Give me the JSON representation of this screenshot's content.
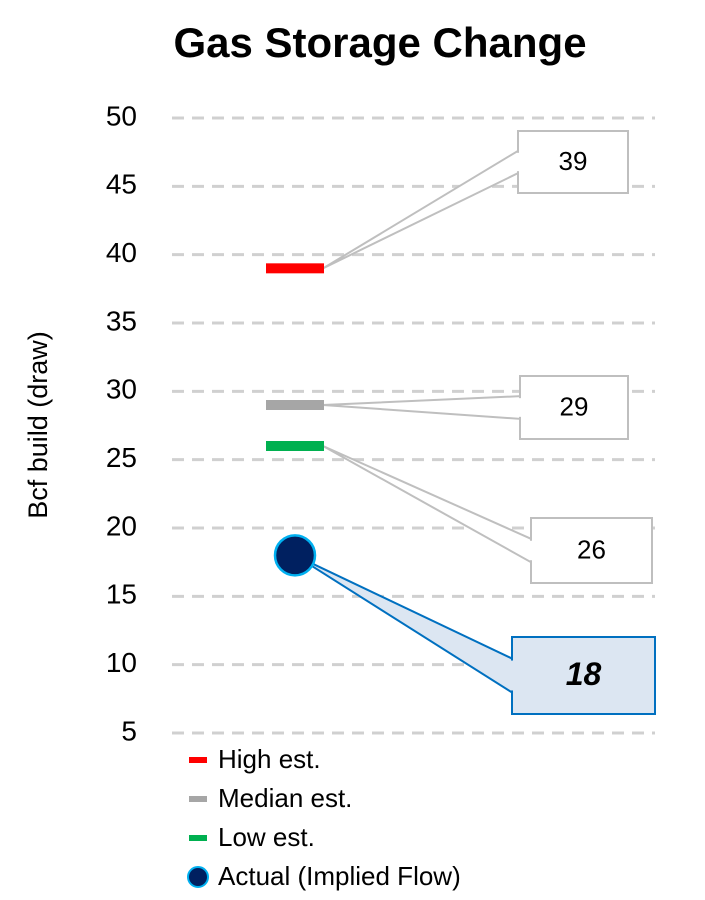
{
  "chart_data": {
    "type": "marker",
    "title": "Gas Storage Change",
    "y_label": "Bcf build (draw)",
    "ylim": [
      5,
      50
    ],
    "yticks": [
      5,
      10,
      15,
      20,
      25,
      30,
      35,
      40,
      45,
      50
    ],
    "grid": true,
    "series": [
      {
        "name": "High est.",
        "color": "#ff0000",
        "marker": "dash",
        "values": [
          39
        ]
      },
      {
        "name": "Median est.",
        "color": "#a6a6a6",
        "marker": "dash",
        "values": [
          29
        ]
      },
      {
        "name": "Low est.",
        "color": "#00b050",
        "marker": "dash",
        "values": [
          26
        ]
      },
      {
        "name": "Actual (Implied Flow)",
        "color": "#002060",
        "marker": "circle",
        "values": [
          18
        ]
      }
    ]
  }
}
